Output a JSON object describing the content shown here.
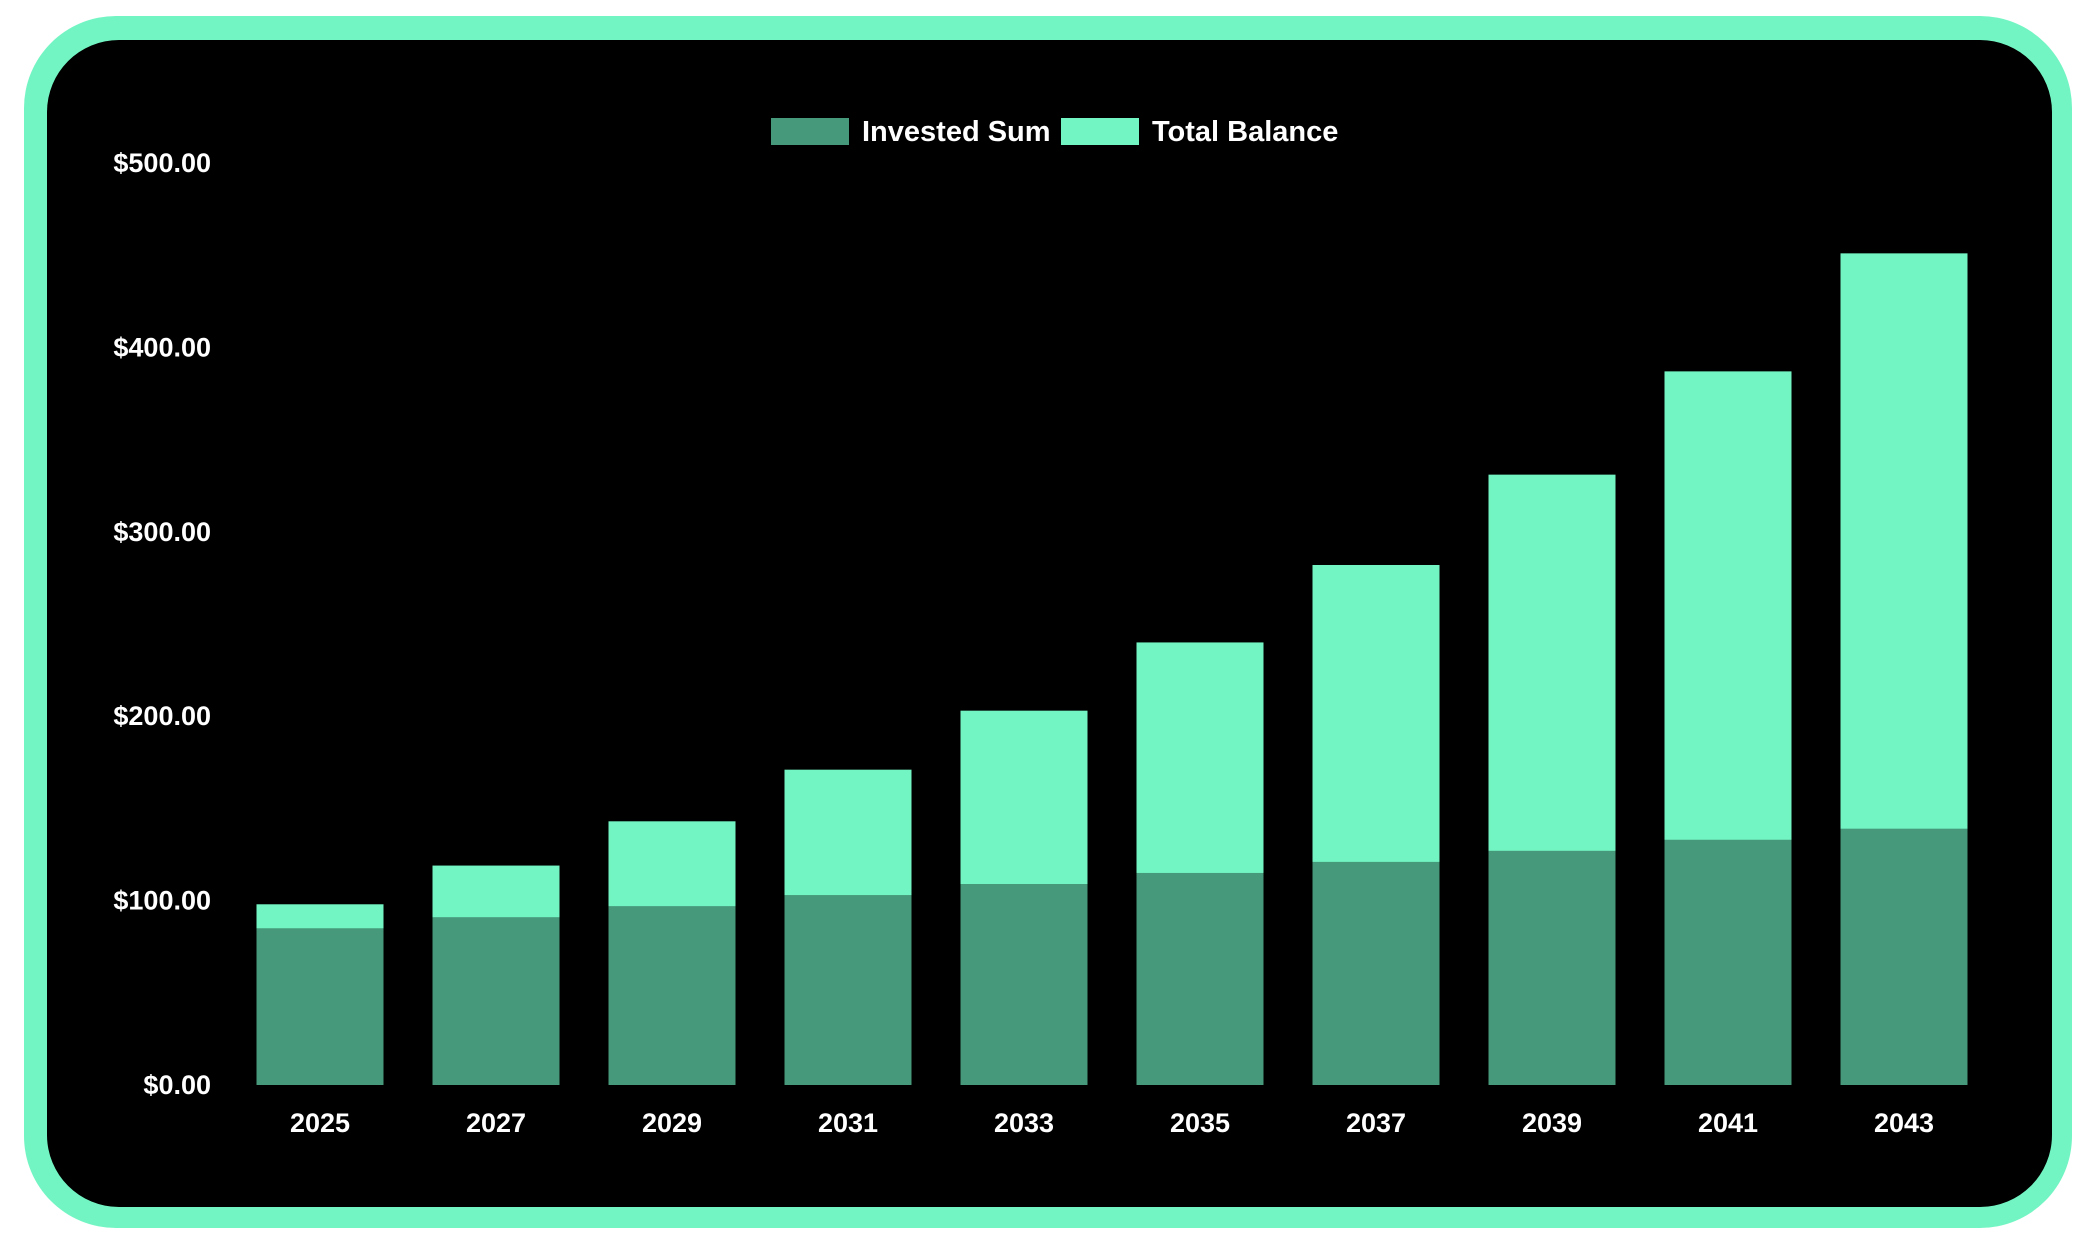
{
  "chart_data": {
    "type": "bar",
    "stacked": false,
    "overlapped": true,
    "title": "",
    "xlabel": "",
    "ylabel": "",
    "ylim": [
      0,
      500
    ],
    "yticks": [
      "$0.00",
      "$100.00",
      "$200.00",
      "$300.00",
      "$400.00",
      "$500.00"
    ],
    "ytick_values": [
      0,
      100,
      200,
      300,
      400,
      500
    ],
    "grid": false,
    "legend_position": "top-center",
    "categories": [
      "2025",
      "2027",
      "2029",
      "2031",
      "2033",
      "2035",
      "2037",
      "2039",
      "2041",
      "2043"
    ],
    "series": [
      {
        "name": "Invested Sum",
        "color": "#46997a",
        "values": [
          85,
          91,
          97,
          103,
          109,
          115,
          121,
          127,
          133,
          139
        ]
      },
      {
        "name": "Total Balance",
        "color": "#73f5c3",
        "values": [
          98,
          119,
          143,
          171,
          203,
          240,
          282,
          331,
          387,
          451
        ]
      }
    ]
  },
  "colors": {
    "frame": "#73f5c3",
    "background": "#000000",
    "text": "#ffffff"
  }
}
